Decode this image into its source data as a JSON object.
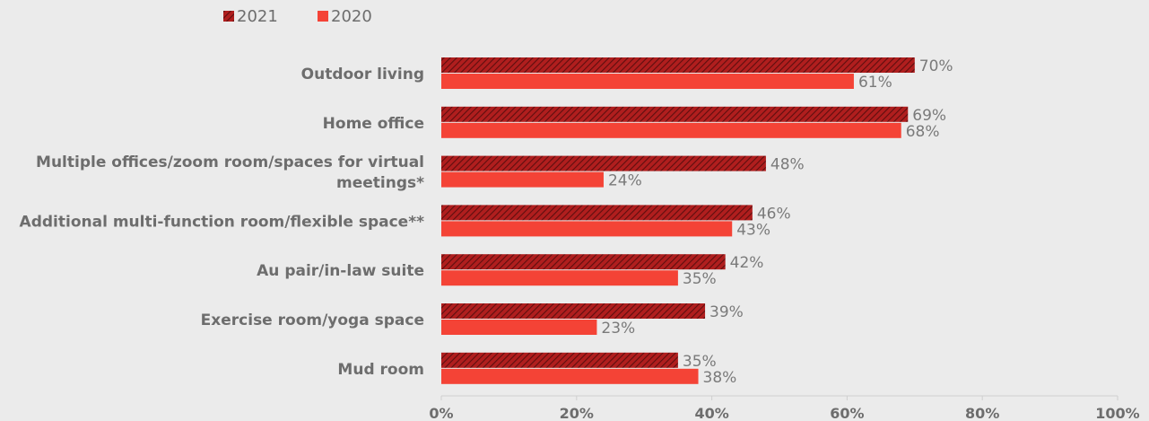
{
  "chart_data": {
    "type": "bar",
    "orientation": "horizontal",
    "categories": [
      [
        "Outdoor living"
      ],
      [
        "Home office"
      ],
      [
        "Multiple offices/zoom room/spaces for virtual",
        "meetings*"
      ],
      [
        "Additional multi-function room/flexible space**"
      ],
      [
        "Au pair/in-law suite"
      ],
      [
        "Exercise room/yoga space"
      ],
      [
        "Mud room"
      ]
    ],
    "series": [
      {
        "name": "2021",
        "values": [
          70,
          69,
          48,
          46,
          42,
          39,
          35
        ],
        "color": "#b01e1e",
        "pattern": "hatched"
      },
      {
        "name": "2020",
        "values": [
          61,
          68,
          24,
          43,
          35,
          23,
          38
        ],
        "color": "#f44336",
        "pattern": "solid"
      }
    ],
    "value_suffix": "%",
    "xlim": [
      0,
      100
    ],
    "x_ticks": [
      "0%",
      "20%",
      "40%",
      "60%",
      "80%",
      "100%"
    ],
    "legend_position": "top-left",
    "grid": false
  }
}
